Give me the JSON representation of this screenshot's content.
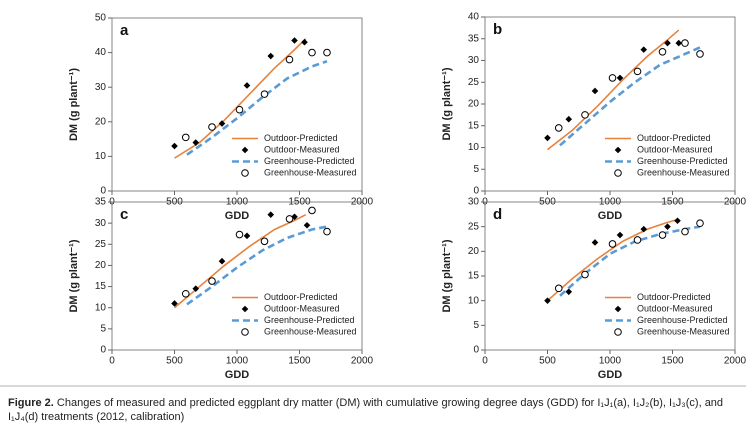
{
  "chart_data": [
    {
      "type": "line",
      "label": "a",
      "xlabel": "GDD",
      "ylabel": "DM (g plant⁻¹)",
      "xlim": [
        0,
        2000
      ],
      "xticks": [
        0,
        500,
        1000,
        1500,
        2000
      ],
      "ylim": [
        0,
        50
      ],
      "yticks": [
        0,
        10,
        20,
        30,
        40,
        50
      ],
      "legend": "lower right",
      "series": [
        {
          "name": "Outdoor-Predicted",
          "color": "#e8823a",
          "style": "solid",
          "x": [
            500,
            700,
            900,
            1100,
            1300,
            1450,
            1550
          ],
          "values": [
            9.5,
            14,
            20.5,
            28,
            35.5,
            40.5,
            44
          ]
        },
        {
          "name": "Outdoor-Measured",
          "color": "#000000",
          "style": "diamond",
          "x": [
            500,
            670,
            880,
            1080,
            1270,
            1460,
            1540
          ],
          "values": [
            13,
            14,
            19.5,
            30.5,
            39,
            43.5,
            43
          ]
        },
        {
          "name": "Greenhouse-Predicted",
          "color": "#5b9bd5",
          "style": "dashed",
          "x": [
            600,
            800,
            1000,
            1200,
            1400,
            1600,
            1720
          ],
          "values": [
            10.5,
            15.5,
            21,
            27,
            32.5,
            36,
            37.5
          ]
        },
        {
          "name": "Greenhouse-Measured",
          "color": "#000000",
          "style": "circle",
          "x": [
            590,
            800,
            1020,
            1220,
            1420,
            1600,
            1720
          ],
          "values": [
            15.5,
            18.5,
            23.5,
            28,
            38,
            40,
            40
          ]
        }
      ]
    },
    {
      "type": "line",
      "label": "b",
      "xlabel": "GDD",
      "ylabel": "DM (g plant⁻¹)",
      "xlim": [
        0,
        2000
      ],
      "xticks": [
        0,
        500,
        1000,
        1500,
        2000
      ],
      "ylim": [
        0,
        40
      ],
      "yticks": [
        0,
        5,
        10,
        15,
        20,
        25,
        30,
        35,
        40
      ],
      "legend": "lower right",
      "series": [
        {
          "name": "Outdoor-Predicted",
          "color": "#e8823a",
          "style": "solid",
          "x": [
            500,
            700,
            900,
            1100,
            1300,
            1450,
            1550
          ],
          "values": [
            9.5,
            14,
            19.5,
            25.5,
            31,
            34.5,
            37
          ]
        },
        {
          "name": "Outdoor-Measured",
          "color": "#000000",
          "style": "diamond",
          "x": [
            500,
            670,
            880,
            1080,
            1270,
            1460,
            1550
          ],
          "values": [
            12.2,
            16.5,
            23,
            26,
            32.5,
            34,
            34
          ]
        },
        {
          "name": "Greenhouse-Predicted",
          "color": "#5b9bd5",
          "style": "dashed",
          "x": [
            600,
            800,
            1000,
            1200,
            1400,
            1600,
            1720
          ],
          "values": [
            10.5,
            15.5,
            20.5,
            25,
            29,
            31.5,
            33
          ]
        },
        {
          "name": "Greenhouse-Measured",
          "color": "#000000",
          "style": "circle",
          "x": [
            590,
            800,
            1020,
            1220,
            1420,
            1600,
            1720
          ],
          "values": [
            14.5,
            17.5,
            26,
            27.5,
            32,
            34,
            31.5
          ]
        }
      ]
    },
    {
      "type": "line",
      "label": "c",
      "xlabel": "GDD",
      "ylabel": "DM (g plant⁻¹)",
      "xlim": [
        0,
        2000
      ],
      "xticks": [
        0,
        500,
        1000,
        1500,
        2000
      ],
      "ylim": [
        0,
        35
      ],
      "yticks": [
        0,
        5,
        10,
        15,
        20,
        25,
        30,
        35
      ],
      "legend": "lower right",
      "series": [
        {
          "name": "Outdoor-Predicted",
          "color": "#e8823a",
          "style": "solid",
          "x": [
            500,
            700,
            900,
            1100,
            1300,
            1450,
            1550
          ],
          "values": [
            10,
            15,
            20,
            24.5,
            28.5,
            30.5,
            32
          ]
        },
        {
          "name": "Outdoor-Measured",
          "color": "#000000",
          "style": "diamond",
          "x": [
            500,
            670,
            880,
            1080,
            1270,
            1460,
            1560
          ],
          "values": [
            11,
            14.5,
            21,
            27,
            32,
            31.5,
            29.5
          ]
        },
        {
          "name": "Greenhouse-Predicted",
          "color": "#5b9bd5",
          "style": "dashed",
          "x": [
            600,
            800,
            1000,
            1200,
            1400,
            1600,
            1720
          ],
          "values": [
            10.8,
            15,
            19.5,
            23.5,
            26.5,
            28.5,
            29.2
          ]
        },
        {
          "name": "Greenhouse-Measured",
          "color": "#000000",
          "style": "circle",
          "x": [
            590,
            800,
            1020,
            1220,
            1420,
            1600,
            1720
          ],
          "values": [
            13.3,
            16.3,
            27.3,
            25.7,
            31,
            33,
            28
          ]
        }
      ]
    },
    {
      "type": "line",
      "label": "d",
      "xlabel": "GDD",
      "ylabel": "DM (g plant⁻¹)",
      "xlim": [
        0,
        2000
      ],
      "xticks": [
        0,
        500,
        1000,
        1500,
        2000
      ],
      "ylim": [
        0,
        30
      ],
      "yticks": [
        0,
        5,
        10,
        15,
        20,
        25,
        30
      ],
      "legend": "lower right",
      "series": [
        {
          "name": "Outdoor-Predicted",
          "color": "#e8823a",
          "style": "solid",
          "x": [
            500,
            700,
            900,
            1100,
            1300,
            1450,
            1550
          ],
          "values": [
            10,
            14.5,
            18.5,
            22,
            24.5,
            25.8,
            26.5
          ]
        },
        {
          "name": "Outdoor-Measured",
          "color": "#000000",
          "style": "diamond",
          "x": [
            500,
            670,
            880,
            1080,
            1270,
            1460,
            1540
          ],
          "values": [
            10,
            11.8,
            21.8,
            23.3,
            24.5,
            25,
            26.2
          ]
        },
        {
          "name": "Greenhouse-Predicted",
          "color": "#5b9bd5",
          "style": "dashed",
          "x": [
            600,
            800,
            1000,
            1200,
            1400,
            1600,
            1720
          ],
          "values": [
            11,
            15.5,
            19.5,
            22,
            23.5,
            24.5,
            25
          ]
        },
        {
          "name": "Greenhouse-Measured",
          "color": "#000000",
          "style": "circle",
          "x": [
            590,
            800,
            1020,
            1220,
            1420,
            1600,
            1720
          ],
          "values": [
            12.5,
            15.3,
            21.5,
            22.3,
            23.3,
            24,
            25.7
          ]
        }
      ]
    }
  ],
  "caption": {
    "label": "Figure 2.",
    "text": "Changes of measured and predicted eggplant dry matter (DM) with cumulative growing degree days (GDD) for I₁J₁(a), I₁J₂(b), I₁J₃(c), and I₁J₄(d) treatments (2012, calibration)"
  }
}
